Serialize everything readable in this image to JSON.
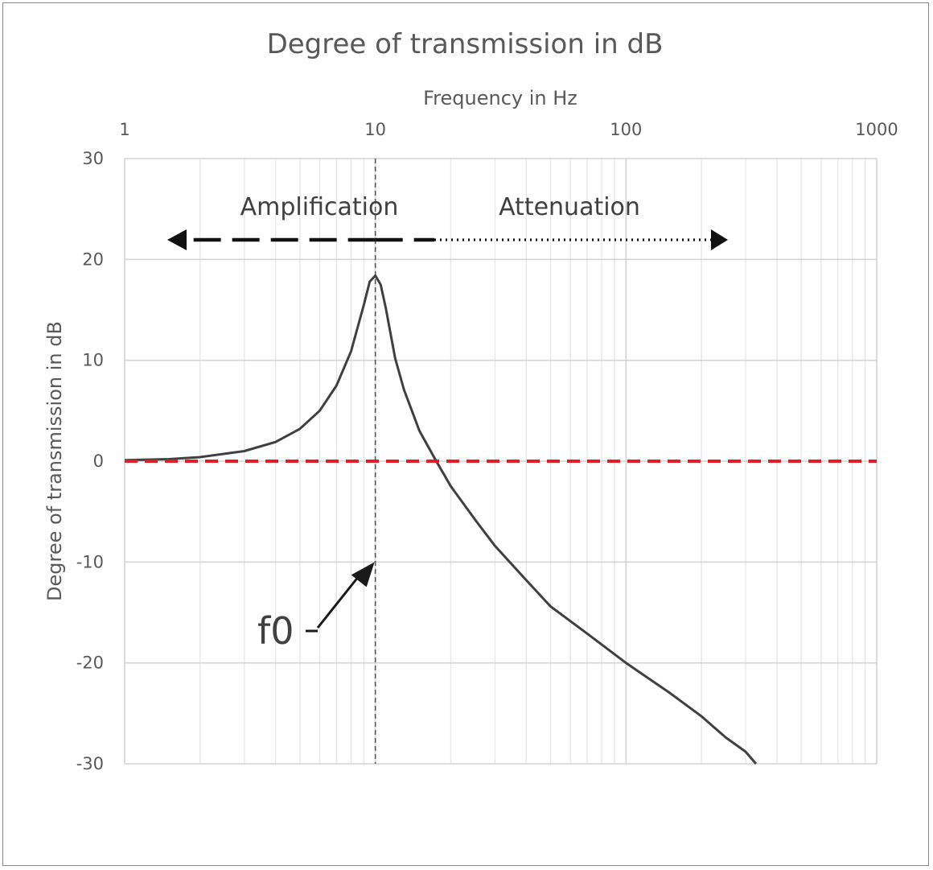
{
  "chart_data": {
    "type": "line",
    "title": "Degree of transmission in dB",
    "xlabel": "Frequency in Hz",
    "ylabel": "Degree of transmission in dB",
    "x_scale": "log",
    "xlim": [
      1,
      1000
    ],
    "ylim": [
      -30,
      30
    ],
    "x_ticks": [
      "1",
      "10",
      "100",
      "1000"
    ],
    "y_ticks": [
      "30",
      "20",
      "10",
      "0",
      "-10",
      "-20",
      "-30"
    ],
    "grid": true,
    "series": [
      {
        "color": "#404040",
        "x": [
          1,
          1.5,
          2,
          3,
          4,
          5,
          6,
          7,
          8,
          9,
          9.5,
          10,
          10.5,
          11,
          12,
          13,
          15,
          17.5,
          20,
          25,
          30,
          40,
          50,
          70,
          100,
          150,
          200,
          250,
          300,
          330
        ],
        "y": [
          0.1,
          0.2,
          0.4,
          1.0,
          1.9,
          3.2,
          5.0,
          7.5,
          10.9,
          15.5,
          17.8,
          18.4,
          17.5,
          15.2,
          10.2,
          7.1,
          3.0,
          0.0,
          -2.5,
          -5.8,
          -8.4,
          -11.8,
          -14.4,
          -17.1,
          -20.0,
          -23.0,
          -25.3,
          -27.4,
          -28.8,
          -30.0
        ]
      },
      {
        "color": "#e51c23",
        "style": "dashed",
        "x": [
          1,
          1000
        ],
        "y": [
          0,
          0
        ]
      }
    ],
    "annotations": {
      "amplification": "Amplification",
      "attenuation": "Attenuation",
      "f0": "f0",
      "f0_value": 10
    }
  }
}
